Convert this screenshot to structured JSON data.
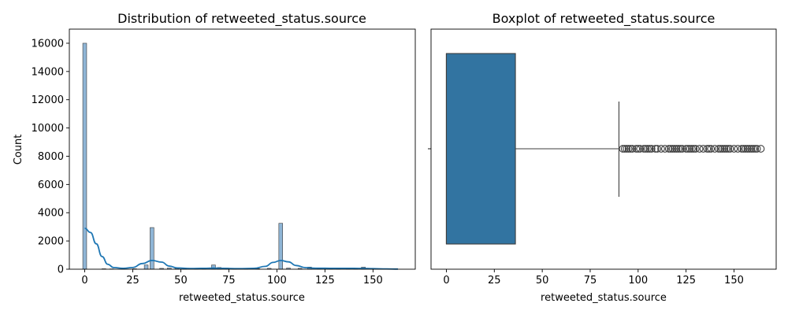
{
  "chart_data": [
    {
      "type": "histogram",
      "title": "Distribution of retweeted_status.source",
      "xlabel": "retweeted_status.source",
      "ylabel": "Count",
      "xlim": [
        -8,
        172
      ],
      "ylim": [
        0,
        17000
      ],
      "xticks": [
        0,
        25,
        50,
        75,
        100,
        125,
        150
      ],
      "yticks": [
        0,
        2000,
        4000,
        6000,
        8000,
        10000,
        12000,
        14000,
        16000
      ],
      "bin_width": 2,
      "bars": [
        {
          "x": 0,
          "count": 16000
        },
        {
          "x": 10,
          "count": 30
        },
        {
          "x": 14,
          "count": 20
        },
        {
          "x": 20,
          "count": 25
        },
        {
          "x": 26,
          "count": 30
        },
        {
          "x": 32,
          "count": 300
        },
        {
          "x": 35,
          "count": 2950
        },
        {
          "x": 40,
          "count": 60
        },
        {
          "x": 44,
          "count": 80
        },
        {
          "x": 48,
          "count": 60
        },
        {
          "x": 52,
          "count": 40
        },
        {
          "x": 58,
          "count": 50
        },
        {
          "x": 62,
          "count": 60
        },
        {
          "x": 67,
          "count": 300
        },
        {
          "x": 70,
          "count": 120
        },
        {
          "x": 74,
          "count": 80
        },
        {
          "x": 78,
          "count": 60
        },
        {
          "x": 84,
          "count": 40
        },
        {
          "x": 90,
          "count": 40
        },
        {
          "x": 96,
          "count": 60
        },
        {
          "x": 102,
          "count": 3250
        },
        {
          "x": 106,
          "count": 80
        },
        {
          "x": 112,
          "count": 60
        },
        {
          "x": 117,
          "count": 150
        },
        {
          "x": 122,
          "count": 80
        },
        {
          "x": 128,
          "count": 60
        },
        {
          "x": 132,
          "count": 60
        },
        {
          "x": 137,
          "count": 50
        },
        {
          "x": 141,
          "count": 60
        },
        {
          "x": 145,
          "count": 150
        },
        {
          "x": 150,
          "count": 40
        },
        {
          "x": 156,
          "count": 30
        },
        {
          "x": 160,
          "count": 30
        }
      ],
      "kde": [
        [
          0,
          2900
        ],
        [
          3,
          2600
        ],
        [
          6,
          1800
        ],
        [
          9,
          900
        ],
        [
          12,
          350
        ],
        [
          15,
          120
        ],
        [
          20,
          60
        ],
        [
          25,
          120
        ],
        [
          30,
          400
        ],
        [
          35,
          620
        ],
        [
          40,
          500
        ],
        [
          44,
          220
        ],
        [
          48,
          90
        ],
        [
          55,
          50
        ],
        [
          62,
          60
        ],
        [
          67,
          80
        ],
        [
          72,
          60
        ],
        [
          80,
          40
        ],
        [
          88,
          60
        ],
        [
          94,
          200
        ],
        [
          98,
          480
        ],
        [
          102,
          620
        ],
        [
          106,
          520
        ],
        [
          110,
          260
        ],
        [
          115,
          110
        ],
        [
          120,
          70
        ],
        [
          130,
          60
        ],
        [
          140,
          60
        ],
        [
          145,
          55
        ],
        [
          150,
          40
        ],
        [
          157,
          20
        ],
        [
          163,
          10
        ]
      ],
      "bar_color": "#8fb5d6",
      "line_color": "#1f77b4"
    },
    {
      "type": "boxplot",
      "title": "Boxplot of retweeted_status.source",
      "xlabel": "retweeted_status.source",
      "xlim": [
        -8,
        172
      ],
      "xticks": [
        0,
        25,
        50,
        75,
        100,
        125,
        150
      ],
      "q1": 0,
      "median": 0,
      "q3": 36,
      "whisker_low": 0,
      "whisker_high": 90,
      "outliers": [
        92,
        93,
        94,
        95,
        96,
        97,
        99,
        100,
        101,
        103,
        104,
        105,
        106,
        107,
        109,
        110,
        112,
        114,
        116,
        117,
        118,
        119,
        120,
        121,
        122,
        123,
        125,
        126,
        127,
        128,
        129,
        130,
        132,
        134,
        136,
        137,
        138,
        140,
        142,
        143,
        144,
        145,
        146,
        147,
        148,
        150,
        152,
        154,
        155,
        156,
        157,
        158,
        159,
        160,
        161,
        162,
        164
      ],
      "box_color": "#3274a1"
    }
  ]
}
